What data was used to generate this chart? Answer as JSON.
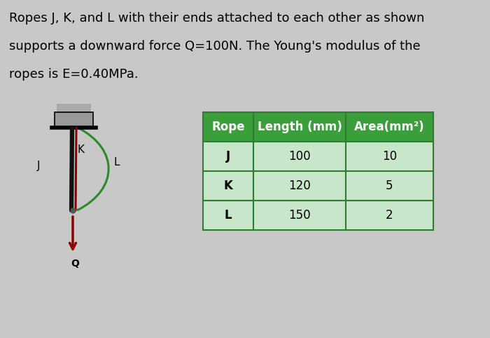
{
  "title_line1": "Ropes J, K, and L with their ends attached to each other as shown",
  "title_line2": "supports a downward force Q=100N. The Young's modulus of the",
  "title_line3": "ropes is E=0.40MPa.",
  "table_headers": [
    "Rope",
    "Length (mm)",
    "Area(mm²)"
  ],
  "table_rows": [
    [
      "J",
      "100",
      "10"
    ],
    [
      "K",
      "120",
      "5"
    ],
    [
      "L",
      "150",
      "2"
    ]
  ],
  "header_bg": "#3a9e3a",
  "header_text": "#ffffff",
  "row_bg": "#c8e6c9",
  "border_color": "#2e7d32",
  "bg_color": "#c8c8c8",
  "rope_j_color": "#111111",
  "rope_k_color": "#8B0000",
  "rope_l_color": "#2a8a2a",
  "wall_color": "#999999",
  "wall_dark": "#555555",
  "arrow_color": "#8B0000",
  "font_size_text": 13,
  "font_size_table": 12
}
